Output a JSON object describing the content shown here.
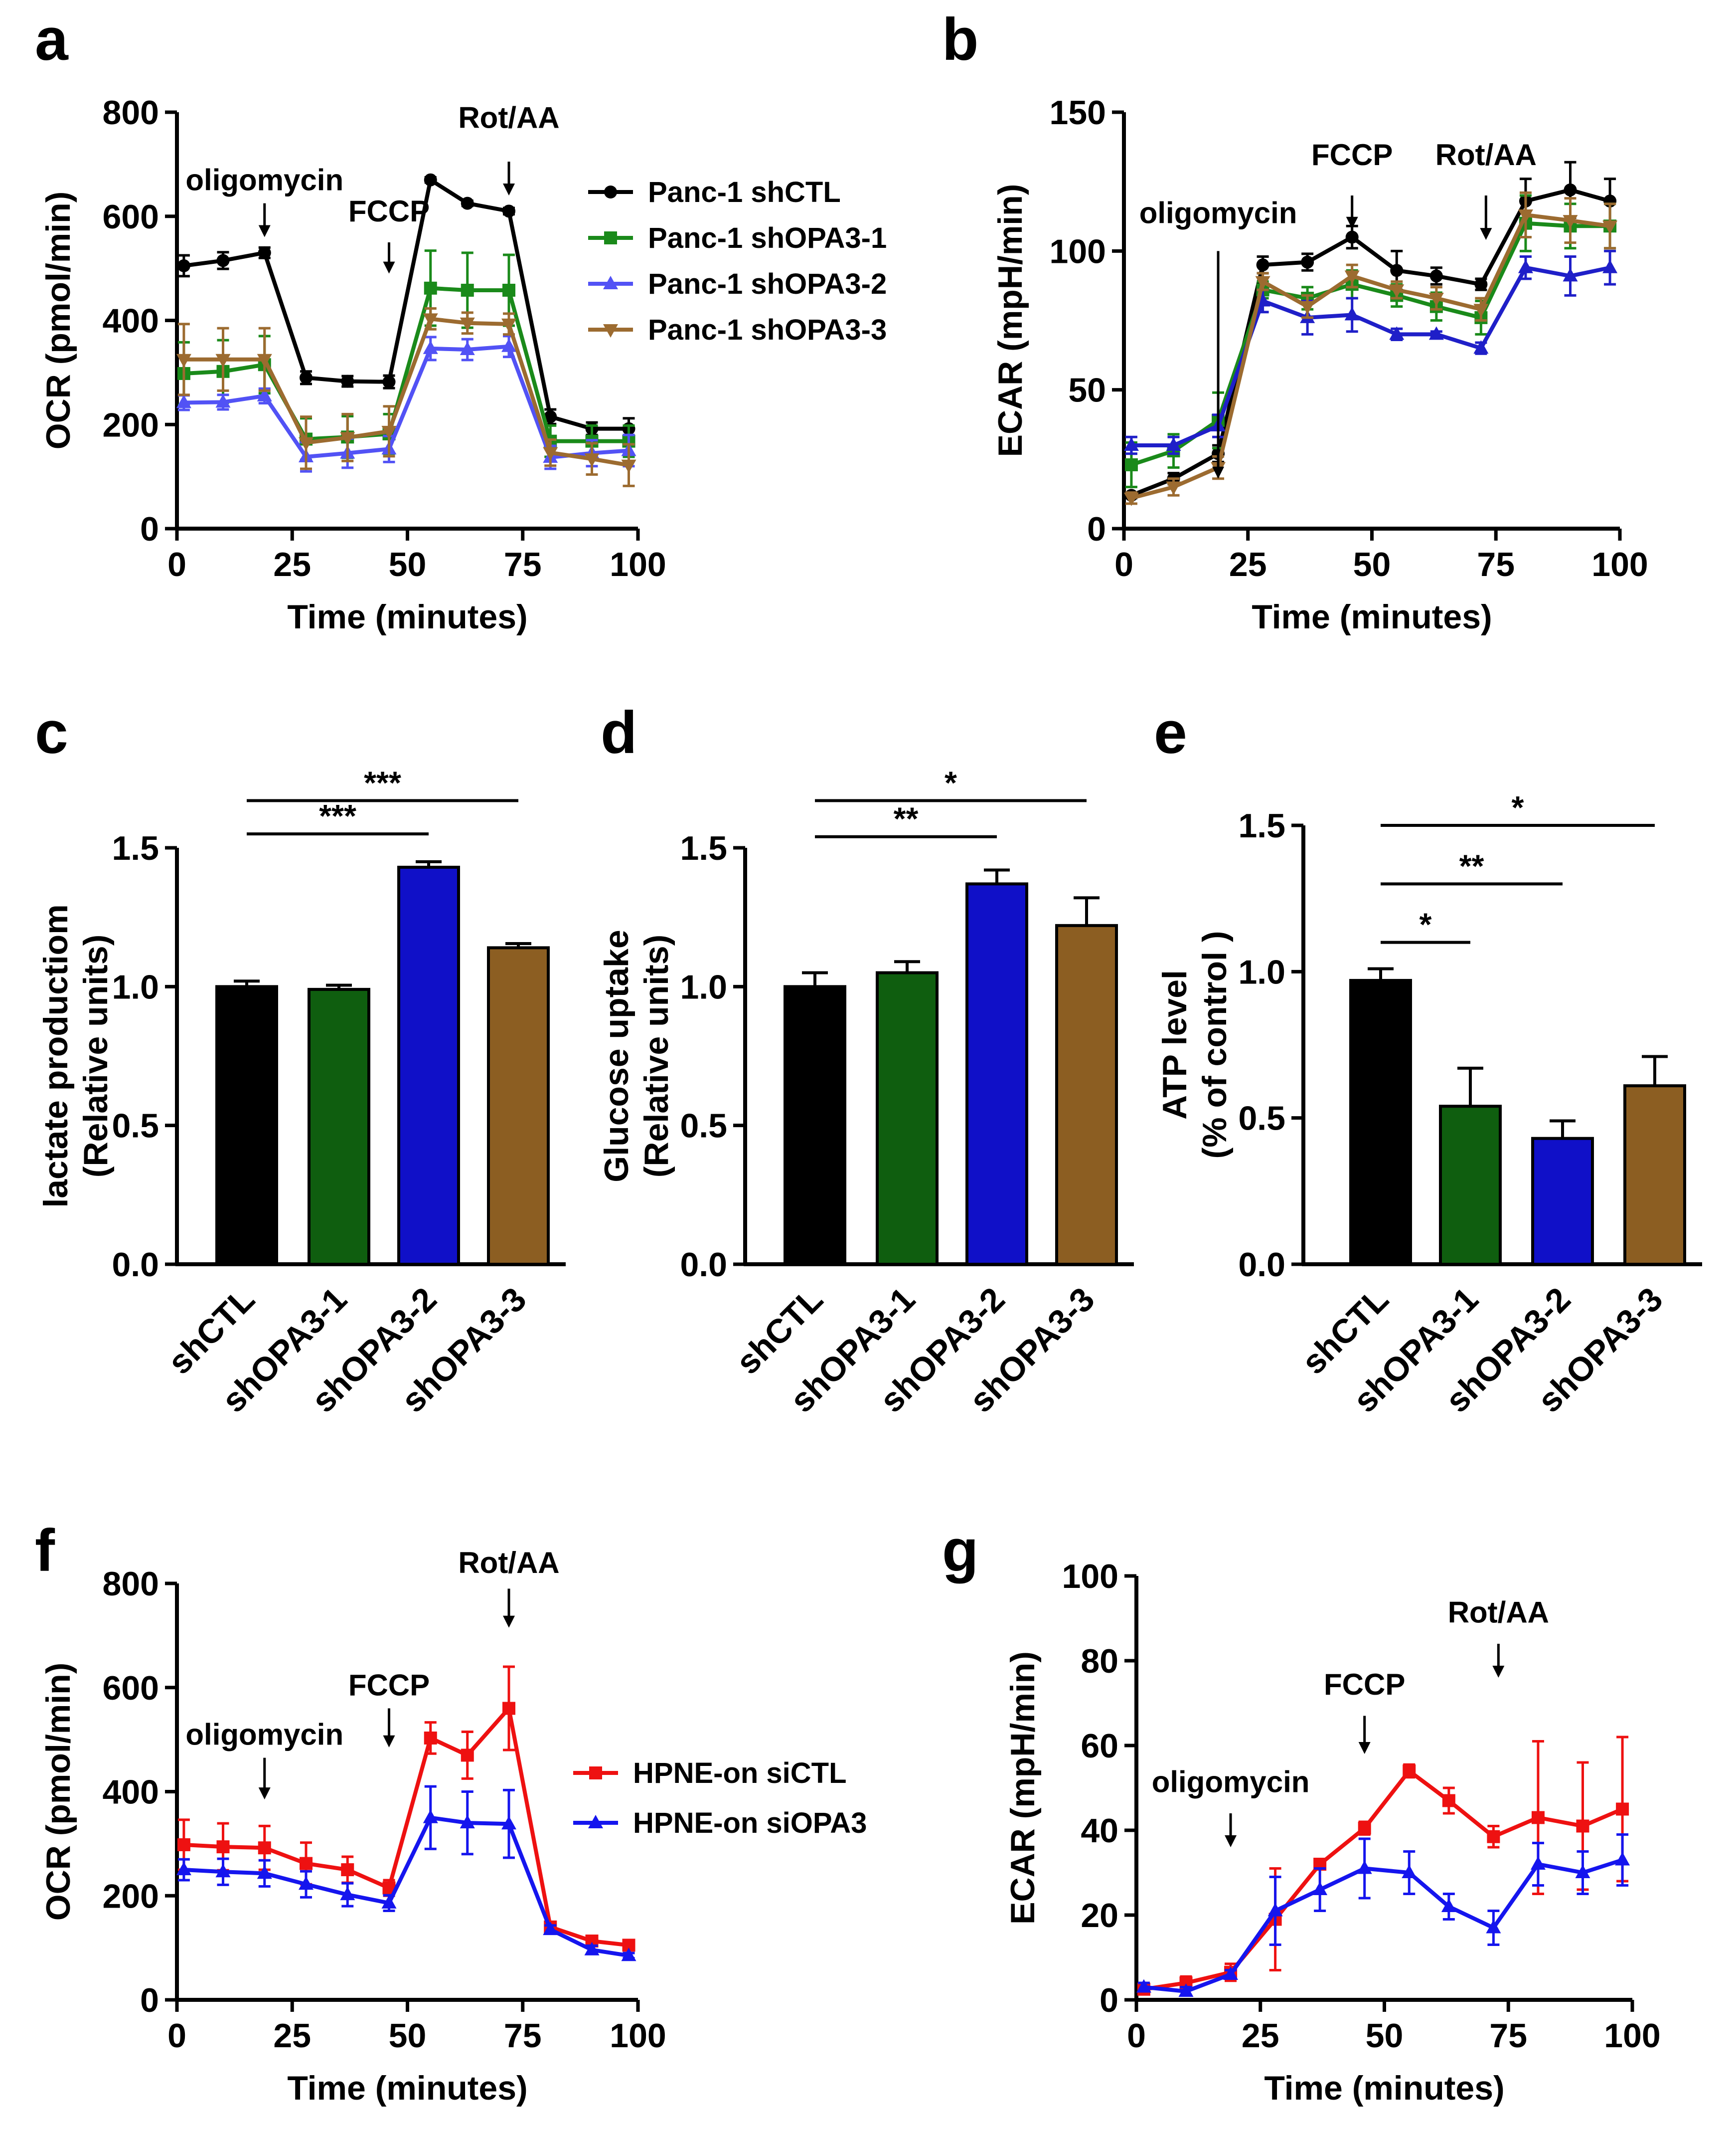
{
  "chart_data": [
    {
      "id": "a",
      "type": "line",
      "panel_label": "a",
      "xlabel": "Time (minutes)",
      "ylabel": "OCR (pmol/min)",
      "xlim": [
        0,
        100
      ],
      "ylim": [
        0,
        800
      ],
      "xticks": [
        0,
        25,
        50,
        75,
        100
      ],
      "yticks": [
        0,
        200,
        400,
        600,
        800
      ],
      "x": [
        1.5,
        10,
        19,
        28,
        37,
        46,
        55,
        63,
        72,
        81,
        90,
        98
      ],
      "series": [
        {
          "name": "Panc-1 shCTL",
          "color": "#000000",
          "marker": "circle",
          "values": [
            505,
            515,
            530,
            290,
            283,
            282,
            670,
            625,
            610,
            215,
            192,
            192
          ],
          "errors": [
            20,
            16,
            10,
            12,
            10,
            12,
            5,
            5,
            6,
            14,
            12,
            20
          ]
        },
        {
          "name": "Panc-1 shOPA3-1",
          "color": "#1a8a1a",
          "marker": "square",
          "values": [
            298,
            302,
            315,
            172,
            176,
            182,
            462,
            458,
            458,
            168,
            168,
            168
          ],
          "errors": [
            60,
            60,
            55,
            40,
            40,
            38,
            72,
            72,
            68,
            30,
            30,
            30
          ]
        },
        {
          "name": "Panc-1 shOPA3-2",
          "color": "#5252f5",
          "marker": "triangle-up",
          "values": [
            242,
            243,
            255,
            138,
            145,
            153,
            346,
            344,
            350,
            137,
            145,
            150
          ],
          "errors": [
            14,
            14,
            14,
            28,
            28,
            25,
            22,
            20,
            20,
            22,
            25,
            30
          ]
        },
        {
          "name": "Panc-1 shOPA3-3",
          "color": "#9c6b30",
          "marker": "triangle-down",
          "values": [
            325,
            325,
            325,
            165,
            175,
            187,
            403,
            395,
            393,
            146,
            134,
            122
          ],
          "errors": [
            68,
            60,
            60,
            50,
            45,
            48,
            20,
            20,
            20,
            25,
            30,
            40
          ]
        }
      ],
      "annotations": [
        {
          "text": "oligomycin",
          "x": 19,
          "y_data": 650,
          "arrow_tip": 625,
          "arrow_len": 65
        },
        {
          "text": "FCCP",
          "x": 46,
          "y_data": 590,
          "arrow_tip": 550,
          "arrow_len": 60
        },
        {
          "text": "Rot/AA",
          "x": 72,
          "y_data": 770,
          "arrow_tip": 705,
          "arrow_len": 65
        }
      ],
      "legend_position": "top-right"
    },
    {
      "id": "b",
      "type": "line",
      "panel_label": "b",
      "xlabel": "Time (minutes)",
      "ylabel": "ECAR (mpH/min)",
      "xlim": [
        0,
        100
      ],
      "ylim": [
        0,
        150
      ],
      "xticks": [
        0,
        25,
        50,
        75,
        100
      ],
      "yticks": [
        0,
        50,
        100,
        150
      ],
      "x": [
        1.5,
        10,
        19,
        28,
        37,
        46,
        55,
        63,
        72,
        81,
        90,
        98
      ],
      "series": [
        {
          "name": "shCTL",
          "color": "#000000",
          "marker": "circle",
          "values": [
            12,
            18,
            27,
            95,
            96,
            105,
            93,
            91,
            88,
            118,
            122,
            118
          ],
          "errors": [
            1,
            2,
            3,
            3,
            3,
            4,
            7,
            3,
            2,
            8,
            10,
            8
          ]
        },
        {
          "name": "shOPA3-1",
          "color": "#1a8a1a",
          "marker": "square",
          "values": [
            23,
            28,
            39,
            86,
            83,
            88,
            84,
            80,
            76,
            110,
            109,
            109
          ],
          "errors": [
            8,
            6,
            10,
            3,
            4,
            5,
            4,
            5,
            6,
            10,
            8,
            8
          ]
        },
        {
          "name": "shOPA3-2",
          "color": "#1f1fc8",
          "marker": "triangle-up",
          "values": [
            30,
            30,
            37,
            82,
            76,
            77,
            70,
            70,
            65,
            94,
            91,
            94
          ],
          "errors": [
            3,
            3,
            4,
            4,
            6,
            6,
            2,
            1,
            2,
            4,
            7,
            6
          ]
        },
        {
          "name": "shOPA3-3",
          "color": "#9c6b30",
          "marker": "triangle-down",
          "values": [
            11,
            15,
            22,
            89,
            80,
            91,
            86,
            83,
            79,
            113,
            111,
            109
          ],
          "errors": [
            2,
            3,
            4,
            3,
            4,
            4,
            3,
            4,
            4,
            8,
            8,
            8
          ]
        }
      ],
      "annotations": [
        {
          "text": "oligomycin",
          "x": 19,
          "y_data": 110,
          "arrow_tip": 100,
          "arrow_len": 82
        },
        {
          "text": "FCCP",
          "x": 46,
          "y_data": 131,
          "arrow_tip": 120,
          "arrow_len": 12
        },
        {
          "text": "Rot/AA",
          "x": 73,
          "y_data": 131,
          "arrow_tip": 120,
          "arrow_len": 16
        }
      ]
    },
    {
      "id": "c",
      "type": "bar",
      "panel_label": "c",
      "ylabel": "lactate productiom\n(Relative units)",
      "ylim": [
        0,
        1.5
      ],
      "yticks": [
        0.0,
        0.5,
        1.0,
        1.5
      ],
      "categories": [
        "shCTL",
        "shOPA3-1",
        "shOPA3-2",
        "shOPA3-3"
      ],
      "values": [
        1.0,
        0.99,
        1.43,
        1.14
      ],
      "errors": [
        0.02,
        0.015,
        0.02,
        0.015
      ],
      "colors": [
        "#000000",
        "#0f5e0f",
        "#1010c8",
        "#8c5e22"
      ],
      "significance": [
        {
          "from": 0,
          "to": 2,
          "label": "***",
          "level": 1.55
        },
        {
          "from": 0,
          "to": 3,
          "label": "***",
          "level": 1.67
        }
      ]
    },
    {
      "id": "d",
      "type": "bar",
      "panel_label": "d",
      "ylabel": "Glucose uptake\n(Relative units)",
      "ylim": [
        0,
        1.5
      ],
      "yticks": [
        0.0,
        0.5,
        1.0,
        1.5
      ],
      "categories": [
        "shCTL",
        "shOPA3-1",
        "shOPA3-2",
        "shOPA3-3"
      ],
      "values": [
        1.0,
        1.05,
        1.37,
        1.22
      ],
      "errors": [
        0.05,
        0.04,
        0.05,
        0.1
      ],
      "colors": [
        "#000000",
        "#0f5e0f",
        "#1010c8",
        "#8c5e22"
      ],
      "significance": [
        {
          "from": 0,
          "to": 2,
          "label": "**",
          "level": 1.54
        },
        {
          "from": 0,
          "to": 3,
          "label": "*",
          "level": 1.67
        }
      ]
    },
    {
      "id": "e",
      "type": "bar",
      "panel_label": "e",
      "ylabel": "ATP level\n(% of control )",
      "ylim": [
        0,
        1.5
      ],
      "yticks": [
        0.0,
        0.5,
        1.0,
        1.5
      ],
      "categories": [
        "shCTL",
        "shOPA3-1",
        "shOPA3-2",
        "shOPA3-3"
      ],
      "values": [
        0.97,
        0.54,
        0.43,
        0.61
      ],
      "errors": [
        0.04,
        0.13,
        0.06,
        0.1
      ],
      "colors": [
        "#000000",
        "#0f5e0f",
        "#1010c8",
        "#8c5e22"
      ],
      "significance": [
        {
          "from": 0,
          "to": 1,
          "label": "*",
          "level": 1.1
        },
        {
          "from": 0,
          "to": 2,
          "label": "**",
          "level": 1.3
        },
        {
          "from": 0,
          "to": 3,
          "label": "*",
          "level": 1.5
        }
      ]
    },
    {
      "id": "f",
      "type": "line",
      "panel_label": "f",
      "xlabel": "Time (minutes)",
      "ylabel": "OCR (pmol/min)",
      "xlim": [
        0,
        100
      ],
      "ylim": [
        0,
        800
      ],
      "xticks": [
        0,
        25,
        50,
        75,
        100
      ],
      "yticks": [
        0,
        200,
        400,
        600,
        800
      ],
      "x": [
        1.5,
        10,
        19,
        28,
        37,
        46,
        55,
        63,
        72,
        81,
        90,
        98
      ],
      "series": [
        {
          "name": "HPNE-on siCTL",
          "color": "#ee1111",
          "marker": "square",
          "values": [
            298,
            294,
            292,
            262,
            250,
            215,
            503,
            470,
            560,
            140,
            113,
            105
          ],
          "errors": [
            48,
            45,
            42,
            40,
            25,
            15,
            30,
            45,
            80,
            8,
            5,
            5
          ]
        },
        {
          "name": "HPNE-on siOPA3",
          "color": "#1515ee",
          "marker": "triangle-up",
          "values": [
            250,
            246,
            243,
            222,
            202,
            186,
            350,
            340,
            338,
            135,
            96,
            85
          ],
          "errors": [
            20,
            25,
            25,
            25,
            22,
            15,
            60,
            60,
            65,
            8,
            8,
            5
          ]
        }
      ],
      "annotations": [
        {
          "text": "oligomycin",
          "x": 19,
          "y_data": 490,
          "arrow_tip": 465,
          "arrow_len": 80
        },
        {
          "text": "FCCP",
          "x": 46,
          "y_data": 585,
          "arrow_tip": 560,
          "arrow_len": 75
        },
        {
          "text": "Rot/AA",
          "x": 72,
          "y_data": 820,
          "arrow_tip": 790,
          "arrow_len": 75
        }
      ],
      "legend_position": "right"
    },
    {
      "id": "g",
      "type": "line",
      "panel_label": "g",
      "xlabel": "Time (minutes)",
      "ylabel": "ECAR (mpH/min)",
      "xlim": [
        0,
        100
      ],
      "ylim": [
        0,
        100
      ],
      "xticks": [
        0,
        25,
        50,
        75,
        100
      ],
      "yticks": [
        0,
        20,
        40,
        60,
        80,
        100
      ],
      "x": [
        1.5,
        10,
        19,
        28,
        37,
        46,
        55,
        63,
        72,
        81,
        90,
        98
      ],
      "series": [
        {
          "name": "siCTL",
          "color": "#ee1111",
          "marker": "square",
          "values": [
            2.5,
            4,
            6.5,
            19,
            32,
            40.5,
            54,
            47,
            38.5,
            43,
            41,
            45
          ],
          "errors": [
            1,
            1.5,
            2,
            12,
            1,
            1.5,
            1.5,
            3,
            2.5,
            18,
            15,
            17
          ]
        },
        {
          "name": "siOPA3",
          "color": "#1515ee",
          "marker": "triangle-up",
          "values": [
            3,
            2,
            6,
            21,
            26,
            31,
            30,
            22,
            17,
            32,
            30,
            33
          ],
          "errors": [
            1,
            1,
            1,
            8,
            5,
            7,
            5,
            3,
            4,
            5,
            5,
            6
          ]
        }
      ],
      "annotations": [
        {
          "text": "oligomycin",
          "x": 19,
          "y_data": 49,
          "arrow_tip": 44,
          "arrow_len": 8
        },
        {
          "text": "FCCP",
          "x": 46,
          "y_data": 72,
          "arrow_tip": 67,
          "arrow_len": 9
        },
        {
          "text": "Rot/AA",
          "x": 73,
          "y_data": 89,
          "arrow_tip": 84,
          "arrow_len": 8
        }
      ]
    }
  ]
}
